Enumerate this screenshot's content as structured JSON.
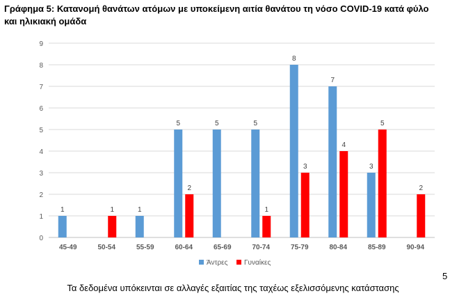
{
  "title_line1": "Γράφημα 5: Κατανομή θανάτων ατόμων με υποκείμενη αιτία θανάτου τη νόσο COVID-19 κατά φύλο",
  "title_line2": "και ηλικιακή ομάδα",
  "footer_text": "Τα δεδομένα υπόκεινται σε αλλαγές εξαιτίας της ταχέως εξελισσόμενης κατάστασης",
  "page_number": "5",
  "chart_data": {
    "type": "bar",
    "categories": [
      "45-49",
      "50-54",
      "55-59",
      "60-64",
      "65-69",
      "70-74",
      "75-79",
      "80-84",
      "85-89",
      "90-94"
    ],
    "series": [
      {
        "name": "Άντρες",
        "color": "#5b9bd5",
        "values": [
          1,
          0,
          1,
          5,
          5,
          5,
          8,
          7,
          3,
          0
        ]
      },
      {
        "name": "Γυναίκες",
        "color": "#ff0000",
        "values": [
          0,
          1,
          0,
          2,
          0,
          1,
          3,
          4,
          5,
          2
        ]
      }
    ],
    "yticks": [
      "0",
      "1",
      "2",
      "3",
      "4",
      "5",
      "6",
      "7",
      "8",
      "9"
    ],
    "ylim": [
      0,
      9
    ],
    "grid": true,
    "legend_position": "bottom"
  }
}
